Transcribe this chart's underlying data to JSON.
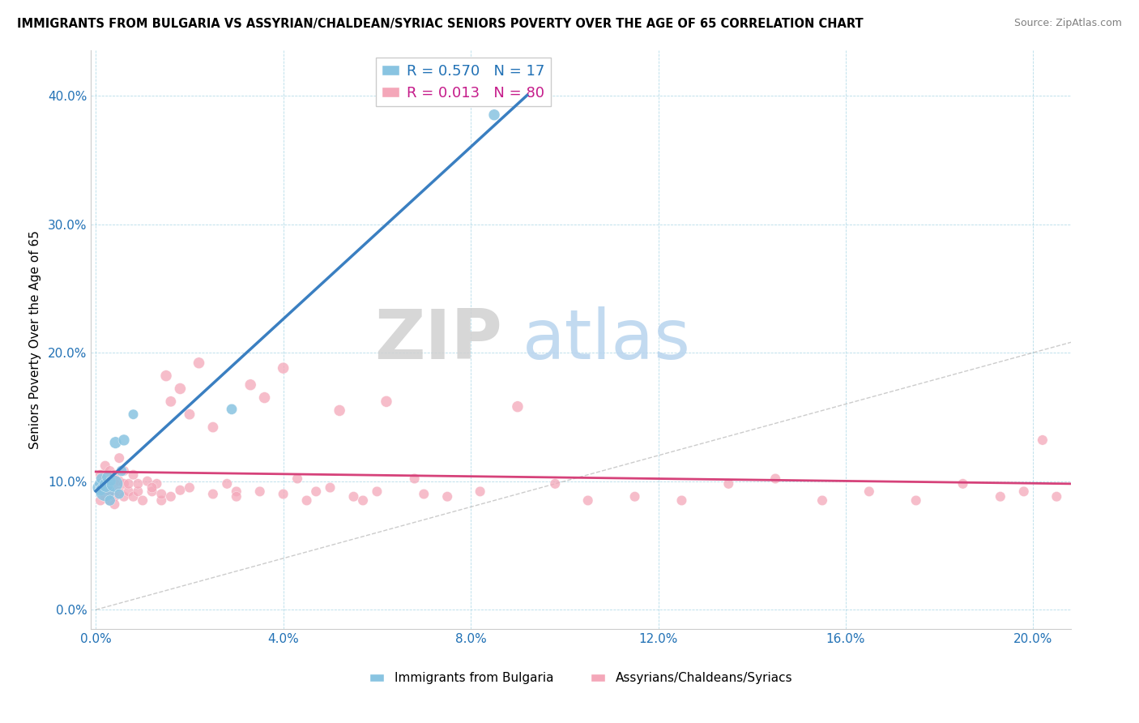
{
  "title": "IMMIGRANTS FROM BULGARIA VS ASSYRIAN/CHALDEAN/SYRIAC SENIORS POVERTY OVER THE AGE OF 65 CORRELATION CHART",
  "source": "Source: ZipAtlas.com",
  "ylabel": "Seniors Poverty Over the Age of 65",
  "xlabel_blue": "Immigrants from Bulgaria",
  "xlabel_pink": "Assyrians/Chaldeans/Syriacs",
  "R_blue": 0.57,
  "N_blue": 17,
  "R_pink": 0.013,
  "N_pink": 80,
  "xlim": [
    -0.001,
    0.208
  ],
  "ylim": [
    -0.015,
    0.435
  ],
  "xtick_vals": [
    0.0,
    0.04,
    0.08,
    0.12,
    0.16,
    0.2
  ],
  "ytick_vals": [
    0.0,
    0.1,
    0.2,
    0.3,
    0.4
  ],
  "blue_color": "#89c4e1",
  "pink_color": "#f4a7b9",
  "blue_line_color": "#3a7fc1",
  "pink_line_color": "#d6427a",
  "watermark_zip_color": "#d0d0d0",
  "watermark_atlas_color": "#b8d4ee",
  "blue_scatter_x": [
    0.0006,
    0.0008,
    0.001,
    0.0012,
    0.002,
    0.0022,
    0.0025,
    0.003,
    0.0032,
    0.004,
    0.0042,
    0.005,
    0.0055,
    0.006,
    0.008,
    0.029,
    0.085
  ],
  "blue_scatter_y": [
    0.095,
    0.098,
    0.093,
    0.102,
    0.092,
    0.097,
    0.103,
    0.085,
    0.1,
    0.098,
    0.13,
    0.09,
    0.108,
    0.132,
    0.152,
    0.156,
    0.385
  ],
  "blue_scatter_size": [
    120,
    80,
    100,
    90,
    300,
    160,
    100,
    90,
    80,
    220,
    110,
    80,
    90,
    100,
    80,
    90,
    100
  ],
  "pink_scatter_x": [
    0.001,
    0.001,
    0.001,
    0.002,
    0.002,
    0.002,
    0.002,
    0.003,
    0.003,
    0.003,
    0.003,
    0.004,
    0.004,
    0.004,
    0.004,
    0.005,
    0.005,
    0.005,
    0.006,
    0.006,
    0.006,
    0.007,
    0.007,
    0.008,
    0.008,
    0.009,
    0.009,
    0.01,
    0.011,
    0.012,
    0.013,
    0.014,
    0.015,
    0.016,
    0.018,
    0.02,
    0.022,
    0.025,
    0.028,
    0.03,
    0.033,
    0.036,
    0.04,
    0.043,
    0.047,
    0.052,
    0.057,
    0.062,
    0.068,
    0.075,
    0.082,
    0.09,
    0.098,
    0.105,
    0.115,
    0.125,
    0.135,
    0.145,
    0.155,
    0.165,
    0.175,
    0.185,
    0.193,
    0.198,
    0.202,
    0.205,
    0.012,
    0.014,
    0.016,
    0.018,
    0.02,
    0.025,
    0.03,
    0.035,
    0.04,
    0.045,
    0.05,
    0.055,
    0.06,
    0.07
  ],
  "pink_scatter_y": [
    0.095,
    0.105,
    0.085,
    0.098,
    0.102,
    0.088,
    0.112,
    0.092,
    0.1,
    0.085,
    0.108,
    0.098,
    0.088,
    0.105,
    0.082,
    0.092,
    0.1,
    0.118,
    0.098,
    0.088,
    0.108,
    0.092,
    0.098,
    0.088,
    0.105,
    0.092,
    0.098,
    0.085,
    0.1,
    0.092,
    0.098,
    0.085,
    0.182,
    0.162,
    0.172,
    0.152,
    0.192,
    0.142,
    0.098,
    0.092,
    0.175,
    0.165,
    0.188,
    0.102,
    0.092,
    0.155,
    0.085,
    0.162,
    0.102,
    0.088,
    0.092,
    0.158,
    0.098,
    0.085,
    0.088,
    0.085,
    0.098,
    0.102,
    0.085,
    0.092,
    0.085,
    0.098,
    0.088,
    0.092,
    0.132,
    0.088,
    0.095,
    0.09,
    0.088,
    0.093,
    0.095,
    0.09,
    0.088,
    0.092,
    0.09,
    0.085,
    0.095,
    0.088,
    0.092,
    0.09
  ],
  "pink_scatter_size": [
    80,
    80,
    80,
    80,
    80,
    80,
    80,
    80,
    80,
    80,
    80,
    80,
    80,
    80,
    80,
    80,
    80,
    80,
    80,
    80,
    80,
    80,
    80,
    80,
    80,
    80,
    80,
    80,
    80,
    80,
    80,
    80,
    100,
    90,
    100,
    90,
    100,
    90,
    80,
    80,
    100,
    100,
    100,
    80,
    80,
    100,
    80,
    100,
    80,
    80,
    80,
    100,
    80,
    80,
    80,
    80,
    80,
    80,
    80,
    80,
    80,
    80,
    80,
    80,
    80,
    80,
    80,
    80,
    80,
    80,
    80,
    80,
    80,
    80,
    80,
    80,
    80,
    80,
    80,
    80
  ]
}
